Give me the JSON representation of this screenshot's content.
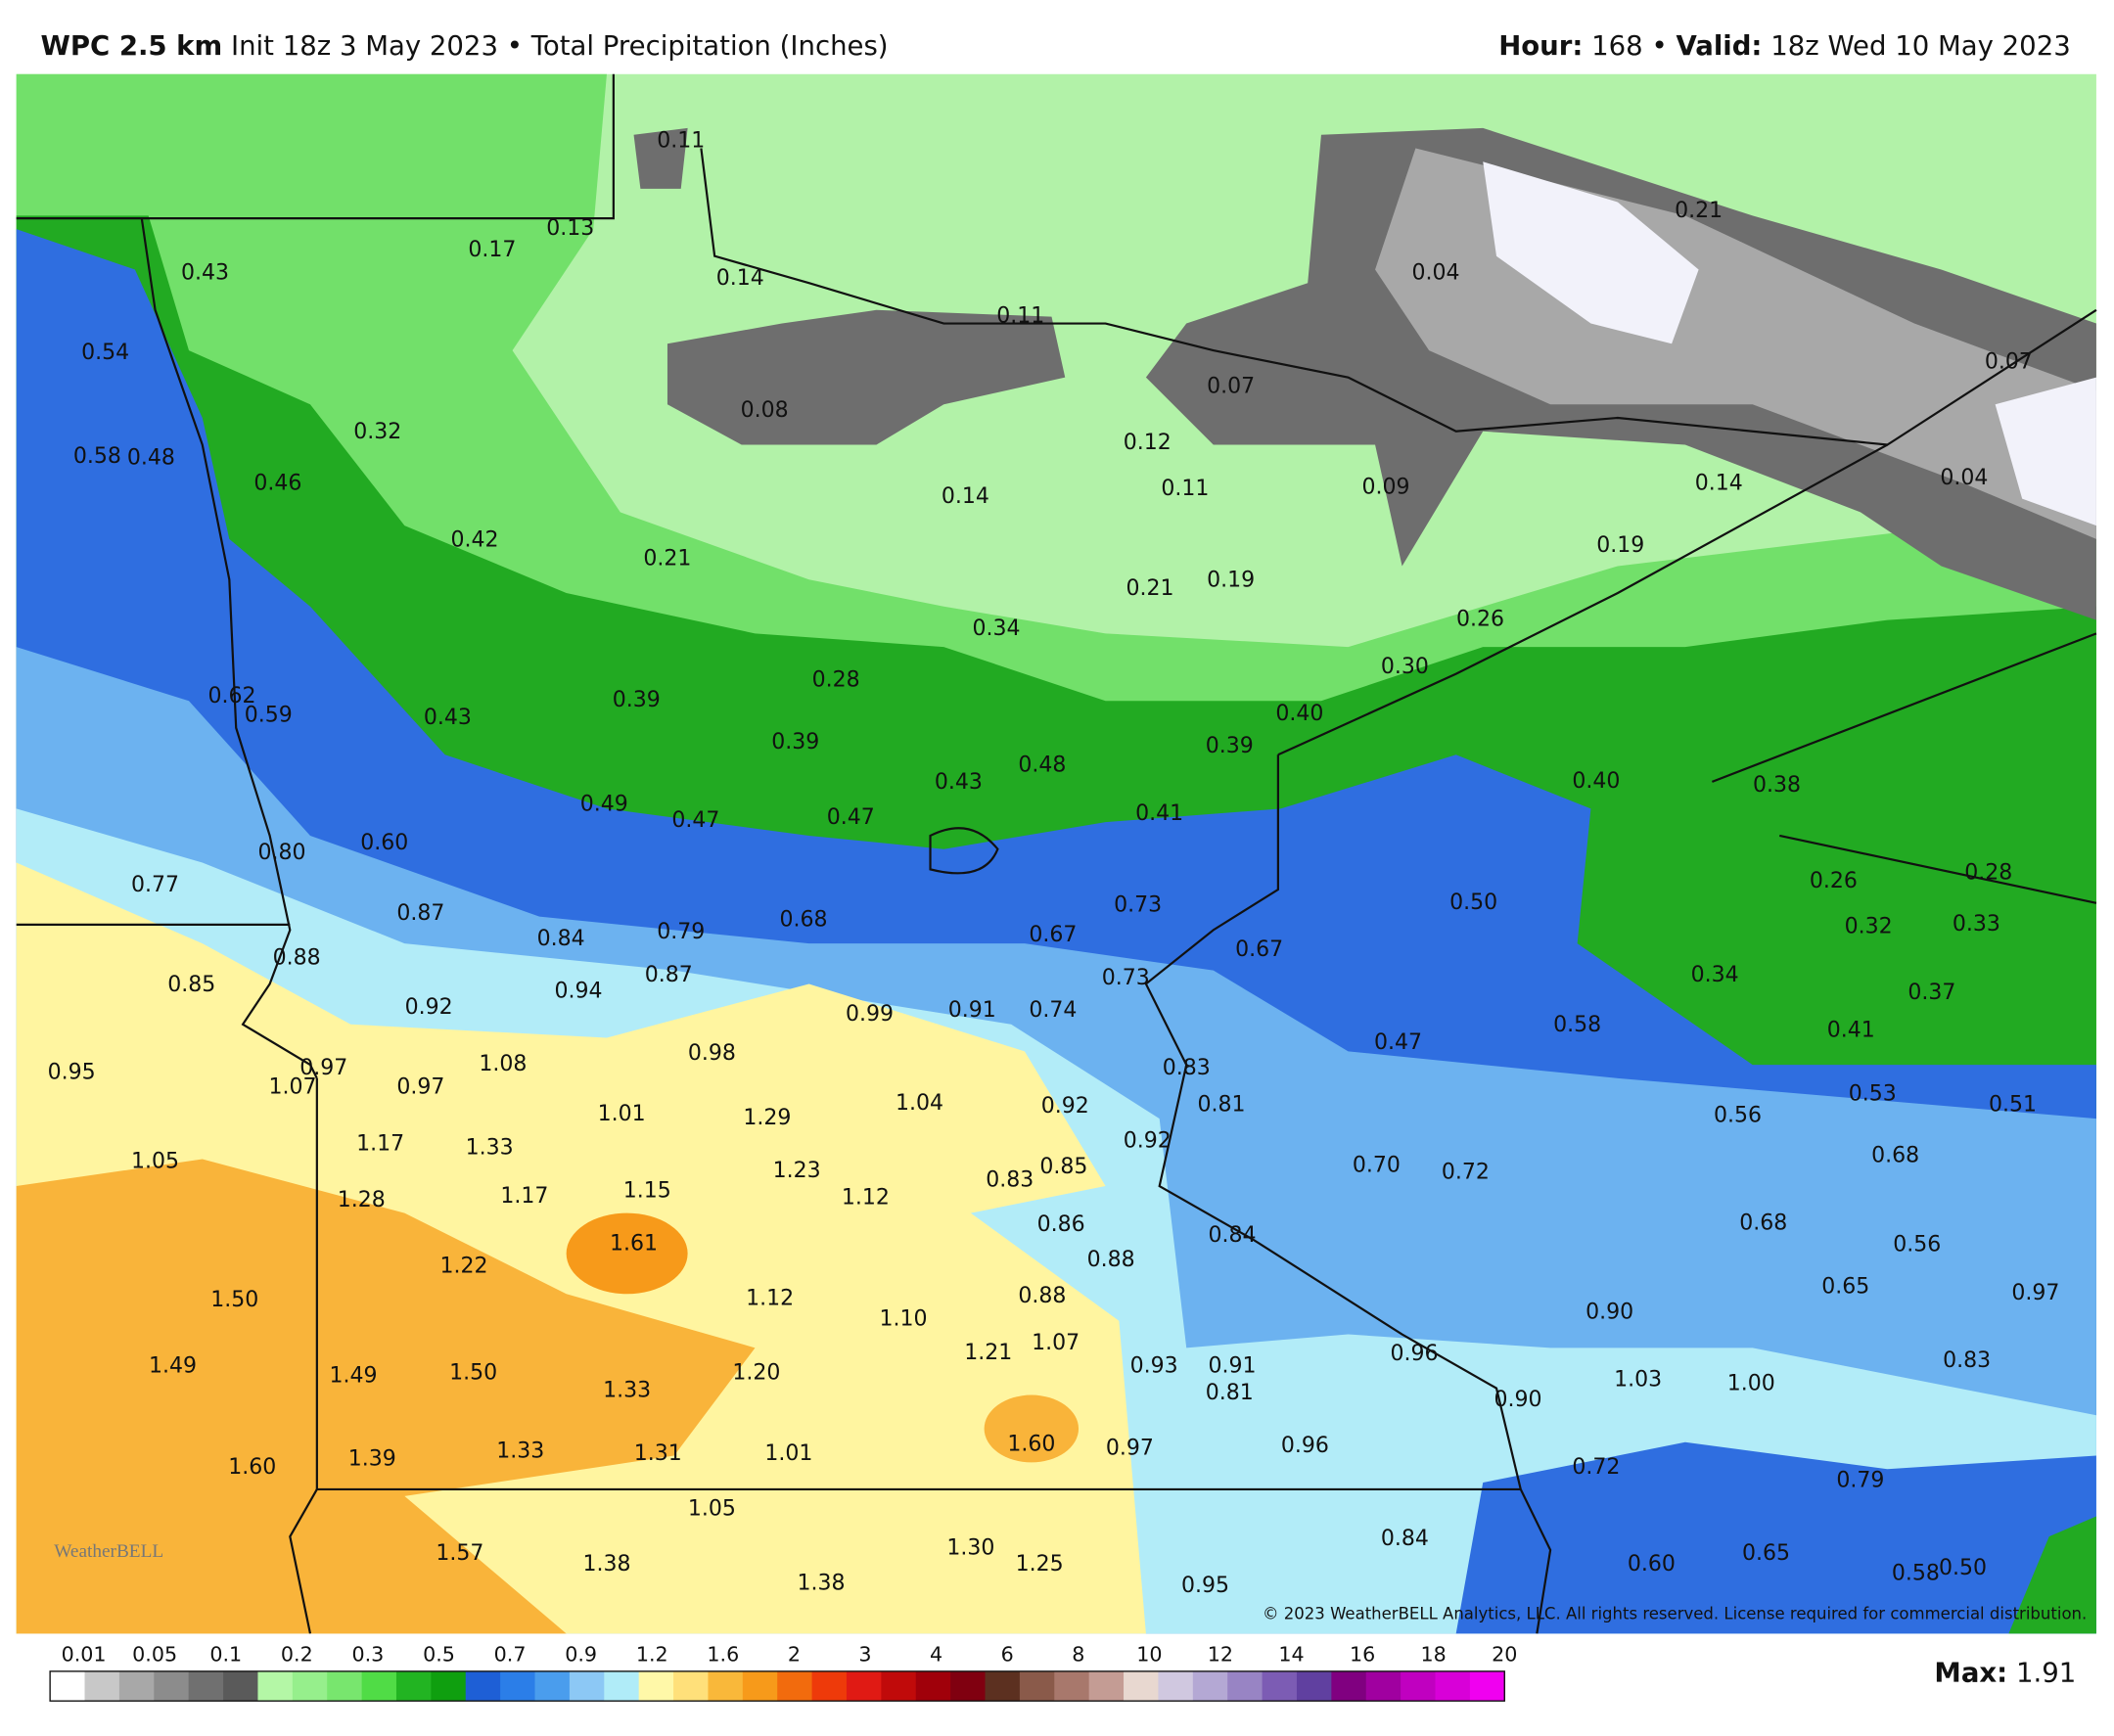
{
  "header": {
    "model": "WPC 2.5 km",
    "init": "Init 18z 3 May 2023",
    "separator": "•",
    "field": "Total Precipitation (Inches)",
    "hour_label": "Hour:",
    "hour": "168",
    "valid_label": "Valid:",
    "valid": "18z Wed 10 May 2023"
  },
  "map": {
    "points": [
      "0.11",
      "0.13",
      "0.17",
      "0.43",
      "0.14",
      "0.11",
      "0.04",
      "0.21",
      "0.54",
      "0.08",
      "0.07",
      "0.07",
      "0.32",
      "0.12",
      "0.58",
      "0.48",
      "0.46",
      "0.14",
      "0.11",
      "0.09",
      "0.14",
      "0.04",
      "0.42",
      "0.21",
      "0.21",
      "0.19",
      "0.19",
      "0.34",
      "0.26",
      "0.28",
      "0.30",
      "0.62",
      "0.59",
      "0.43",
      "0.39",
      "0.40",
      "0.39",
      "0.39",
      "0.43",
      "0.48",
      "0.40",
      "0.38",
      "0.49",
      "0.47",
      "0.47",
      "0.41",
      "0.80",
      "0.60",
      "0.26",
      "0.28",
      "0.77",
      "0.87",
      "0.73",
      "0.50",
      "0.32",
      "0.33",
      "0.84",
      "0.79",
      "0.68",
      "0.67",
      "0.67",
      "0.88",
      "0.85",
      "0.87",
      "0.94",
      "0.73",
      "0.34",
      "0.37",
      "0.92",
      "0.99",
      "0.91",
      "0.74",
      "0.58",
      "0.41",
      "0.47",
      "0.95",
      "0.97",
      "1.07",
      "0.97",
      "1.08",
      "0.98",
      "0.83",
      "1.01",
      "1.29",
      "1.04",
      "0.92",
      "0.81",
      "0.53",
      "0.51",
      "0.56",
      "1.17",
      "1.33",
      "0.92",
      "1.05",
      "1.23",
      "0.85",
      "0.83",
      "0.70",
      "0.72",
      "0.68",
      "1.28",
      "1.17",
      "1.15",
      "1.12",
      "0.86",
      "0.84",
      "0.68",
      "0.56",
      "1.61",
      "1.22",
      "0.88",
      "1.50",
      "1.12",
      "0.88",
      "1.10",
      "0.90",
      "0.65",
      "0.97",
      "1.07",
      "1.21",
      "0.96",
      "1.49",
      "1.49",
      "1.50",
      "1.20",
      "0.93",
      "0.91",
      "0.83",
      "1.33",
      "0.81",
      "0.90",
      "1.03",
      "1.00",
      "1.60",
      "0.97",
      "0.96",
      "1.39",
      "1.33",
      "1.31",
      "1.01",
      "1.60",
      "0.72",
      "0.79",
      "1.05",
      "0.84",
      "1.57",
      "1.30",
      "1.25",
      "1.38",
      "0.60",
      "0.65",
      "0.58",
      "0.50",
      "1.38",
      "0.95"
    ],
    "copyright": "© 2023 WeatherBELL Analytics, LLC. All rights reserved. License required for commercial distribution.",
    "logo": "WeatherBELL"
  },
  "legend": {
    "labels": [
      "0.01",
      "0.05",
      "0.1",
      "0.2",
      "0.3",
      "0.5",
      "0.7",
      "0.9",
      "1.2",
      "1.6",
      "2",
      "3",
      "4",
      "6",
      "8",
      "10",
      "12",
      "14",
      "16",
      "18",
      "20"
    ],
    "max_label": "Max:",
    "max": "1.91"
  }
}
